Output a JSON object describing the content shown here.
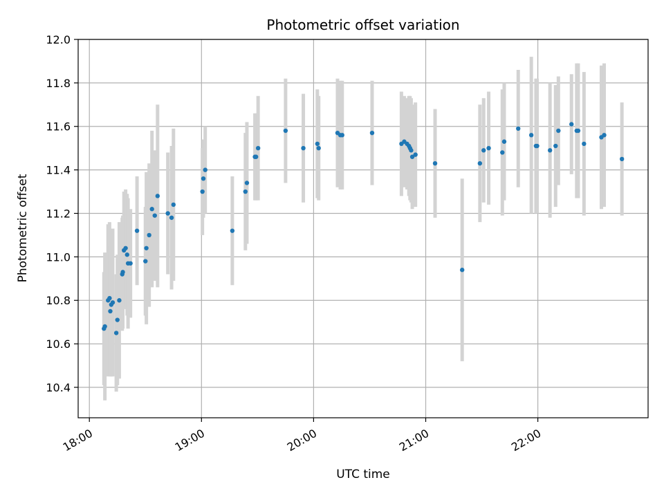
{
  "chart_data": {
    "type": "scatter",
    "title": "Photometric offset variation",
    "xlabel": "UTC time",
    "ylabel": "Photometric offset",
    "x_ticks": [
      "18:00",
      "19:00",
      "20:00",
      "21:00",
      "22:00"
    ],
    "x_range_minutes": [
      -6,
      299
    ],
    "x_origin_label": "18:00",
    "y_ticks": [
      "10.4",
      "10.6",
      "10.8",
      "11.0",
      "11.2",
      "11.4",
      "11.6",
      "11.8",
      "12.0"
    ],
    "ylim": [
      10.26,
      12.0
    ],
    "grid": true,
    "point_color": "#1f77b4",
    "errorbar_color": "#d3d3d3",
    "series": [
      {
        "name": "",
        "points": [
          {
            "t": 7.8,
            "y": 10.67,
            "err": 0.26
          },
          {
            "t": 8.3,
            "y": 10.68,
            "err": 0.34
          },
          {
            "t": 10.0,
            "y": 10.8,
            "err": 0.35
          },
          {
            "t": 10.8,
            "y": 10.81,
            "err": 0.35
          },
          {
            "t": 11.2,
            "y": 10.75,
            "err": 0.3
          },
          {
            "t": 11.7,
            "y": 10.78,
            "err": 0.33
          },
          {
            "t": 12.5,
            "y": 10.79,
            "err": 0.34
          },
          {
            "t": 14.4,
            "y": 10.65,
            "err": 0.27
          },
          {
            "t": 15.0,
            "y": 10.71,
            "err": 0.3
          },
          {
            "t": 16.0,
            "y": 10.8,
            "err": 0.36
          },
          {
            "t": 17.6,
            "y": 10.92,
            "err": 0.26
          },
          {
            "t": 17.9,
            "y": 10.93,
            "err": 0.26
          },
          {
            "t": 18.5,
            "y": 11.03,
            "err": 0.27
          },
          {
            "t": 19.4,
            "y": 11.04,
            "err": 0.27
          },
          {
            "t": 20.2,
            "y": 11.01,
            "err": 0.28
          },
          {
            "t": 20.7,
            "y": 10.97,
            "err": 0.3
          },
          {
            "t": 22.0,
            "y": 10.97,
            "err": 0.25
          },
          {
            "t": 25.5,
            "y": 11.12,
            "err": 0.25
          },
          {
            "t": 30.0,
            "y": 10.98,
            "err": 0.25
          },
          {
            "t": 30.5,
            "y": 11.04,
            "err": 0.35
          },
          {
            "t": 32.0,
            "y": 11.1,
            "err": 0.33
          },
          {
            "t": 33.5,
            "y": 11.22,
            "err": 0.36
          },
          {
            "t": 35.0,
            "y": 11.19,
            "err": 0.3
          },
          {
            "t": 36.5,
            "y": 11.28,
            "err": 0.42
          },
          {
            "t": 42.0,
            "y": 11.2,
            "err": 0.28
          },
          {
            "t": 44.0,
            "y": 11.18,
            "err": 0.33
          },
          {
            "t": 45.0,
            "y": 11.24,
            "err": 0.35
          },
          {
            "t": 60.5,
            "y": 11.3,
            "err": 0.2
          },
          {
            "t": 61.0,
            "y": 11.36,
            "err": 0.18
          },
          {
            "t": 62.0,
            "y": 11.4,
            "err": 0.2
          },
          {
            "t": 76.5,
            "y": 11.12,
            "err": 0.25
          },
          {
            "t": 83.5,
            "y": 11.3,
            "err": 0.27
          },
          {
            "t": 84.3,
            "y": 11.34,
            "err": 0.28
          },
          {
            "t": 88.6,
            "y": 11.46,
            "err": 0.2
          },
          {
            "t": 89.2,
            "y": 11.46,
            "err": 0.2
          },
          {
            "t": 90.3,
            "y": 11.5,
            "err": 0.24
          },
          {
            "t": 105.0,
            "y": 11.58,
            "err": 0.24
          },
          {
            "t": 114.5,
            "y": 11.5,
            "err": 0.25
          },
          {
            "t": 122.0,
            "y": 11.52,
            "err": 0.25
          },
          {
            "t": 122.7,
            "y": 11.5,
            "err": 0.24
          },
          {
            "t": 132.8,
            "y": 11.57,
            "err": 0.25
          },
          {
            "t": 134.3,
            "y": 11.56,
            "err": 0.25
          },
          {
            "t": 135.3,
            "y": 11.56,
            "err": 0.25
          },
          {
            "t": 151.3,
            "y": 11.57,
            "err": 0.24
          },
          {
            "t": 167.0,
            "y": 11.52,
            "err": 0.24
          },
          {
            "t": 168.5,
            "y": 11.53,
            "err": 0.21
          },
          {
            "t": 170.0,
            "y": 11.52,
            "err": 0.21
          },
          {
            "t": 171.0,
            "y": 11.51,
            "err": 0.23
          },
          {
            "t": 171.6,
            "y": 11.5,
            "err": 0.24
          },
          {
            "t": 172.2,
            "y": 11.49,
            "err": 0.24
          },
          {
            "t": 172.8,
            "y": 11.46,
            "err": 0.24
          },
          {
            "t": 174.5,
            "y": 11.47,
            "err": 0.24
          },
          {
            "t": 185.0,
            "y": 11.43,
            "err": 0.25
          },
          {
            "t": 199.5,
            "y": 10.94,
            "err": 0.42
          },
          {
            "t": 209.0,
            "y": 11.43,
            "err": 0.27
          },
          {
            "t": 211.0,
            "y": 11.49,
            "err": 0.24
          },
          {
            "t": 213.7,
            "y": 11.5,
            "err": 0.26
          },
          {
            "t": 221.0,
            "y": 11.48,
            "err": 0.29
          },
          {
            "t": 222.0,
            "y": 11.53,
            "err": 0.27
          },
          {
            "t": 229.5,
            "y": 11.59,
            "err": 0.27
          },
          {
            "t": 236.5,
            "y": 11.56,
            "err": 0.36
          },
          {
            "t": 239.0,
            "y": 11.51,
            "err": 0.31
          },
          {
            "t": 239.6,
            "y": 11.51,
            "err": 0.31
          },
          {
            "t": 246.5,
            "y": 11.49,
            "err": 0.31
          },
          {
            "t": 249.5,
            "y": 11.51,
            "err": 0.28
          },
          {
            "t": 251.0,
            "y": 11.58,
            "err": 0.25
          },
          {
            "t": 258.0,
            "y": 11.61,
            "err": 0.23
          },
          {
            "t": 260.8,
            "y": 11.58,
            "err": 0.31
          },
          {
            "t": 261.6,
            "y": 11.58,
            "err": 0.31
          },
          {
            "t": 264.7,
            "y": 11.52,
            "err": 0.33
          },
          {
            "t": 274.0,
            "y": 11.55,
            "err": 0.33
          },
          {
            "t": 275.5,
            "y": 11.56,
            "err": 0.33
          },
          {
            "t": 285.0,
            "y": 11.45,
            "err": 0.26
          }
        ]
      }
    ]
  }
}
